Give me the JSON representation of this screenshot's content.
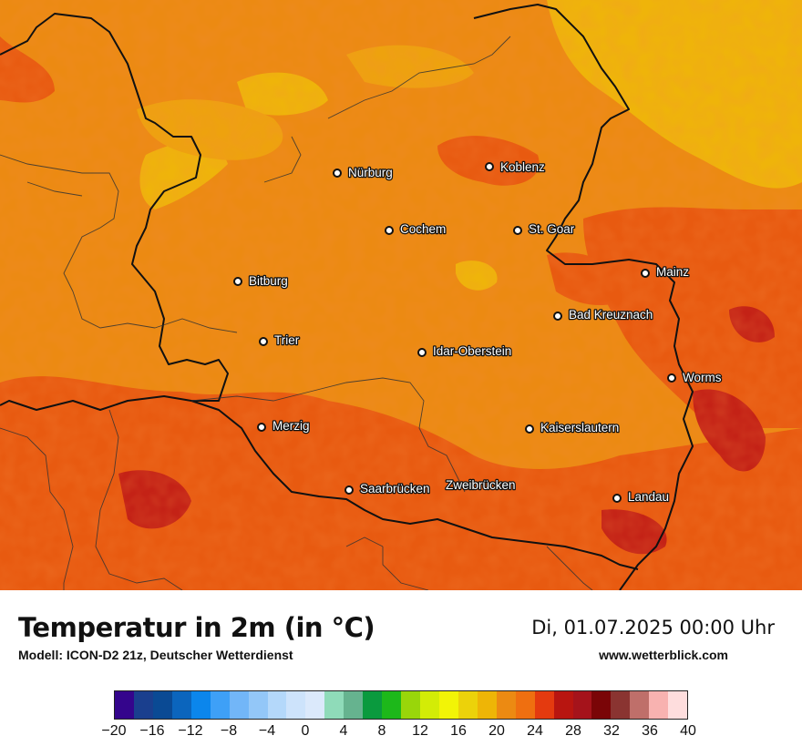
{
  "map": {
    "cities": [
      {
        "name": "Nürburg"
      },
      {
        "name": "Koblenz"
      },
      {
        "name": "Cochem"
      },
      {
        "name": "St. Goar"
      },
      {
        "name": "Mainz"
      },
      {
        "name": "Bitburg"
      },
      {
        "name": "Bad Kreuznach"
      },
      {
        "name": "Trier"
      },
      {
        "name": "Idar-Oberstein"
      },
      {
        "name": "Worms"
      },
      {
        "name": "Merzig"
      },
      {
        "name": "Kaiserslautern"
      },
      {
        "name": "Saarbrücken"
      },
      {
        "name": "Zweibrücken"
      },
      {
        "name": "Landau"
      }
    ]
  },
  "footer": {
    "title": "Temperatur in 2m (in °C)",
    "subtitle": "Modell: ICON-D2 21z, Deutscher Wetterdienst",
    "datetime": "Di, 01.07.2025 00:00 Uhr",
    "website": "www.wetterblick.com"
  },
  "legend": {
    "colors": [
      "#34058c",
      "#1a3f8e",
      "#0a4a94",
      "#0b65bd",
      "#0b86ec",
      "#3ea0f7",
      "#72b6f8",
      "#93c7f8",
      "#b4d8fa",
      "#cde3fb",
      "#dbe9fb",
      "#8fdbb9",
      "#66b38f",
      "#0a9a3e",
      "#1db81a",
      "#99d60a",
      "#d3ec06",
      "#f2f406",
      "#ecd20a",
      "#eeb506",
      "#ec8a12",
      "#ef6f10",
      "#e43a0f",
      "#b81510",
      "#a5131b",
      "#7a0507",
      "#8a3431",
      "#bf6f6a",
      "#f8b2b0",
      "#fedddd"
    ],
    "ticks": [
      "−20",
      "−16",
      "−12",
      "−8",
      "−4",
      "0",
      "4",
      "8",
      "12",
      "16",
      "20",
      "24",
      "28",
      "32",
      "36",
      "40"
    ]
  }
}
